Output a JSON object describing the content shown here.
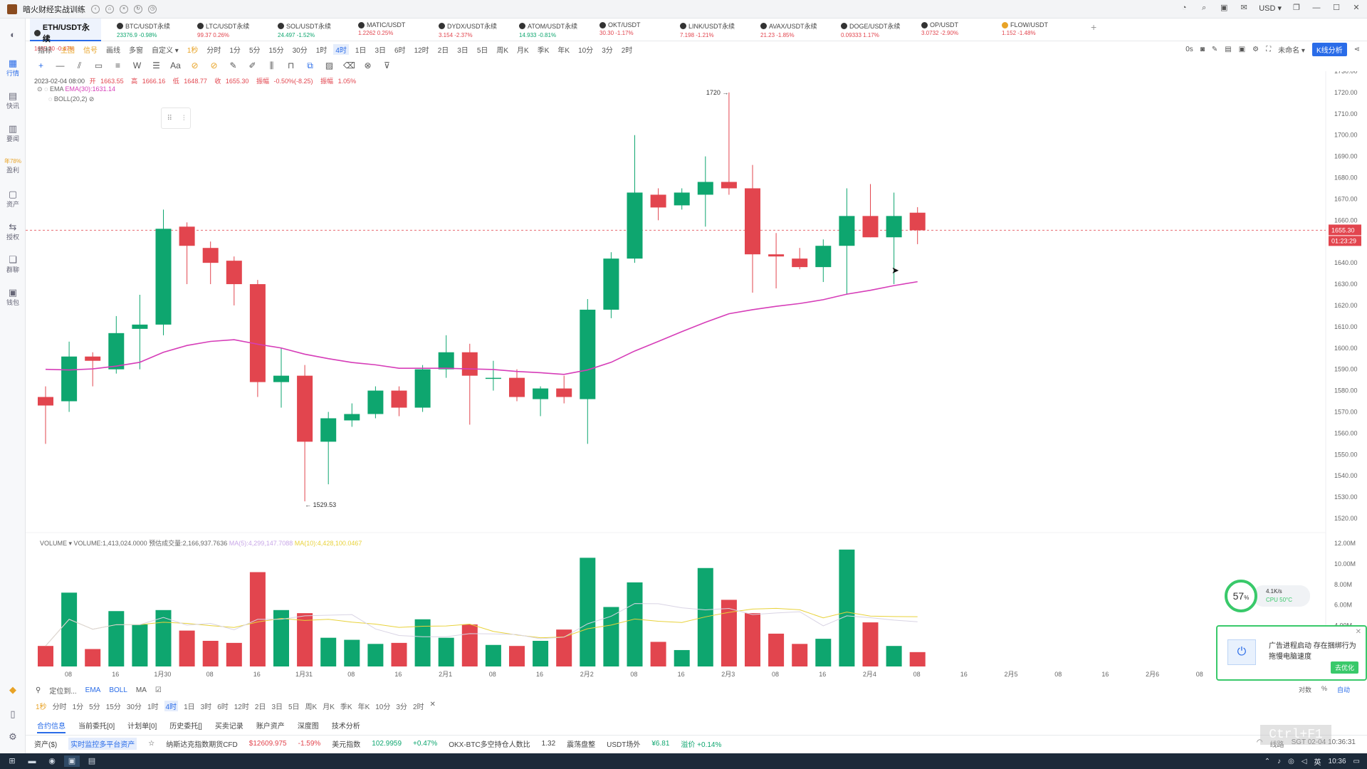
{
  "window": {
    "title": "暗火财经实战训练"
  },
  "titlebar_right": {
    "currency": "USD ▾"
  },
  "leftbar": {
    "items": [
      {
        "label": "",
        "icon": "globe-icon"
      },
      {
        "label": "行情",
        "icon": "market-icon"
      },
      {
        "label": "快讯",
        "icon": "news-icon"
      },
      {
        "label": "要闻",
        "icon": "headline-icon"
      },
      {
        "label": "盈利",
        "icon": "profit-icon",
        "badge": "年78%"
      },
      {
        "label": "资产",
        "icon": "asset-icon"
      },
      {
        "label": "授权",
        "icon": "auth-icon"
      },
      {
        "label": "群聊",
        "icon": "chat-icon"
      },
      {
        "label": "钱包",
        "icon": "wallet-icon"
      }
    ]
  },
  "tabs": [
    {
      "name": "ETH/USDT永续",
      "price": "1655.30",
      "change": "-0.47%",
      "dir": "down",
      "active": true
    },
    {
      "name": "BTC/USDT永续",
      "price": "23376.9",
      "change": "-0.98%",
      "dir": "up"
    },
    {
      "name": "LTC/USDT永续",
      "price": "99.37",
      "change": "0.26%",
      "dir": "down"
    },
    {
      "name": "SOL/USDT永续",
      "price": "24.497",
      "change": "-1.52%",
      "dir": "up"
    },
    {
      "name": "MATIC/USDT",
      "price": "1.2262",
      "change": "0.25%",
      "dir": "down"
    },
    {
      "name": "DYDX/USDT永续",
      "price": "3.154",
      "change": "-2.37%",
      "dir": "down"
    },
    {
      "name": "ATOM/USDT永续",
      "price": "14.933",
      "change": "-0.81%",
      "dir": "up"
    },
    {
      "name": "OKT/USDT",
      "price": "30.30",
      "change": "-1.17%",
      "dir": "down"
    },
    {
      "name": "LINK/USDT永续",
      "price": "7.198",
      "change": "-1.21%",
      "dir": "down"
    },
    {
      "name": "AVAX/USDT永续",
      "price": "21.23",
      "change": "-1.85%",
      "dir": "down"
    },
    {
      "name": "DOGE/USDT永续",
      "price": "0.09333",
      "change": "1.17%",
      "dir": "down"
    },
    {
      "name": "OP/USDT",
      "price": "3.0732",
      "change": "-2.90%",
      "dir": "down"
    },
    {
      "name": "FLOW/USDT",
      "price": "1.152",
      "change": "-1.48%",
      "dir": "down"
    }
  ],
  "add_tab": "+",
  "toolbar1": {
    "items": [
      "指标",
      "主图",
      "信号",
      "画线",
      "多窗",
      "自定义 ▾",
      "1秒",
      "分时",
      "1分",
      "5分",
      "15分",
      "30分",
      "1时",
      "4时",
      "1日",
      "3日",
      "6时",
      "12时",
      "2日",
      "3日",
      "5日",
      "周K",
      "月K",
      "季K",
      "年K",
      "10分",
      "3分",
      "2时"
    ],
    "selected": "4时"
  },
  "top_right": {
    "interval": "0s",
    "layout": "未命名 ▾",
    "kline_btn": "K线分析"
  },
  "ohlc": {
    "date": "2023-02-04 08:00",
    "open_label": "开",
    "open": "1663.55",
    "high_label": "高",
    "high": "1666.16",
    "low_label": "低",
    "low": "1648.77",
    "close_label": "收",
    "close": "1655.30",
    "amp_label": "振幅",
    "amp": "-0.50%(-8.25)",
    "range_label": "振幅",
    "range": "1.05%"
  },
  "indicators": {
    "ema_name": "EMA",
    "ema_value": "EMA(30):1631.14",
    "boll": "BOLL(20,2)"
  },
  "volume_info": {
    "label": "VOLUME ▾",
    "volume": "VOLUME:1,413,024.0000",
    "est": "预估成交量:2,166,937.7636",
    "ma5": "MA(5):4,299,147.7088",
    "ma10": "MA(10):4,428,100.0467"
  },
  "chart_data": {
    "type": "candlestick",
    "price_axis": {
      "min": 1520,
      "max": 1730,
      "step": 10
    },
    "volume_axis": {
      "labels": [
        "12.00M",
        "10.00M",
        "8.00M",
        "6.00M",
        "4.00M"
      ],
      "max": 12.5
    },
    "current_price": "1655.30",
    "countdown": "01:23:29",
    "annotations": {
      "high": "1720 →",
      "low": "← 1529.53"
    },
    "time_labels": [
      "08",
      "16",
      "1月30",
      "08",
      "16",
      "1月31",
      "08",
      "16",
      "2月1",
      "08",
      "16",
      "2月2",
      "08",
      "16",
      "2月3",
      "08",
      "16",
      "2月4",
      "08",
      "16",
      "2月5",
      "08",
      "16",
      "2月6",
      "08"
    ],
    "candles": [
      {
        "o": 1577,
        "h": 1582,
        "l": 1555,
        "c": 1573,
        "v": 2.0
      },
      {
        "o": 1575,
        "h": 1603,
        "l": 1570,
        "c": 1596,
        "v": 7.2
      },
      {
        "o": 1596,
        "h": 1598,
        "l": 1582,
        "c": 1594,
        "v": 1.7
      },
      {
        "o": 1590,
        "h": 1615,
        "l": 1588,
        "c": 1607,
        "v": 5.4
      },
      {
        "o": 1609,
        "h": 1625,
        "l": 1590,
        "c": 1611,
        "v": 4.1
      },
      {
        "o": 1611,
        "h": 1665,
        "l": 1606,
        "c": 1656,
        "v": 5.5
      },
      {
        "o": 1657,
        "h": 1659,
        "l": 1630,
        "c": 1648,
        "v": 3.5
      },
      {
        "o": 1647,
        "h": 1650,
        "l": 1630,
        "c": 1640,
        "v": 2.5
      },
      {
        "o": 1641,
        "h": 1643,
        "l": 1620,
        "c": 1630,
        "v": 2.3
      },
      {
        "o": 1630,
        "h": 1632,
        "l": 1577,
        "c": 1584,
        "v": 9.2
      },
      {
        "o": 1584,
        "h": 1600,
        "l": 1572,
        "c": 1587,
        "v": 5.5
      },
      {
        "o": 1587,
        "h": 1592,
        "l": 1528,
        "c": 1556,
        "v": 5.2
      },
      {
        "o": 1556,
        "h": 1570,
        "l": 1536,
        "c": 1567,
        "v": 2.8
      },
      {
        "o": 1566,
        "h": 1574,
        "l": 1563,
        "c": 1569,
        "v": 2.6
      },
      {
        "o": 1569,
        "h": 1582,
        "l": 1567,
        "c": 1580,
        "v": 2.2
      },
      {
        "o": 1580,
        "h": 1582,
        "l": 1568,
        "c": 1572,
        "v": 2.3
      },
      {
        "o": 1572,
        "h": 1592,
        "l": 1570,
        "c": 1590,
        "v": 4.6
      },
      {
        "o": 1590,
        "h": 1606,
        "l": 1586,
        "c": 1598,
        "v": 2.8
      },
      {
        "o": 1598,
        "h": 1602,
        "l": 1564,
        "c": 1587,
        "v": 4.1
      },
      {
        "o": 1586,
        "h": 1594,
        "l": 1580,
        "c": 1586,
        "v": 2.1
      },
      {
        "o": 1586,
        "h": 1590,
        "l": 1575,
        "c": 1577,
        "v": 2.0
      },
      {
        "o": 1576,
        "h": 1582,
        "l": 1568,
        "c": 1581,
        "v": 2.5
      },
      {
        "o": 1581,
        "h": 1587,
        "l": 1574,
        "c": 1577,
        "v": 3.6
      },
      {
        "o": 1576,
        "h": 1623,
        "l": 1555,
        "c": 1618,
        "v": 10.6
      },
      {
        "o": 1618,
        "h": 1645,
        "l": 1614,
        "c": 1642,
        "v": 5.8
      },
      {
        "o": 1642,
        "h": 1700,
        "l": 1640,
        "c": 1673,
        "v": 8.2
      },
      {
        "o": 1672,
        "h": 1675,
        "l": 1660,
        "c": 1666,
        "v": 2.4
      },
      {
        "o": 1667,
        "h": 1675,
        "l": 1665,
        "c": 1673,
        "v": 1.6
      },
      {
        "o": 1672,
        "h": 1690,
        "l": 1657,
        "c": 1678,
        "v": 9.6
      },
      {
        "o": 1678,
        "h": 1720,
        "l": 1672,
        "c": 1675,
        "v": 6.5
      },
      {
        "o": 1675,
        "h": 1686,
        "l": 1626,
        "c": 1644,
        "v": 5.2
      },
      {
        "o": 1644,
        "h": 1654,
        "l": 1628,
        "c": 1643,
        "v": 3.2
      },
      {
        "o": 1642,
        "h": 1647,
        "l": 1637,
        "c": 1638,
        "v": 2.2
      },
      {
        "o": 1638,
        "h": 1651,
        "l": 1631,
        "c": 1648,
        "v": 2.7
      },
      {
        "o": 1648,
        "h": 1675,
        "l": 1625,
        "c": 1662,
        "v": 11.4
      },
      {
        "o": 1662,
        "h": 1677,
        "l": 1652,
        "c": 1652,
        "v": 4.3
      },
      {
        "o": 1652,
        "h": 1673,
        "l": 1630,
        "c": 1662,
        "v": 2.0
      },
      {
        "o": 1663.55,
        "h": 1666.16,
        "l": 1648.77,
        "c": 1655.3,
        "v": 1.4
      }
    ],
    "ema30": [
      1590,
      1589.7,
      1590.2,
      1591.5,
      1593.3,
      1598.0,
      1601.2,
      1603.1,
      1603.9,
      1601.8,
      1600.0,
      1597.1,
      1595.0,
      1593.2,
      1592.1,
      1590.5,
      1590.5,
      1590.5,
      1590.2,
      1589.9,
      1589.0,
      1588.4,
      1587.6,
      1589.7,
      1593.3,
      1598.6,
      1603.1,
      1607.7,
      1612.1,
      1616.1,
      1618.0,
      1619.6,
      1620.9,
      1622.7,
      1625.3,
      1627.1,
      1629.3,
      1631.14
    ]
  },
  "bottom_toolbar": {
    "locate": "定位到...",
    "ema": "EMA",
    "boll": "BOLL",
    "ma": "MA"
  },
  "bottom_intervals": {
    "items": [
      "1秒",
      "分时",
      "1分",
      "5分",
      "15分",
      "30分",
      "1时",
      "4时",
      "1日",
      "3时",
      "6时",
      "12时",
      "2日",
      "3日",
      "5日",
      "周K",
      "月K",
      "季K",
      "年K",
      "10分",
      "3分",
      "2时",
      "✕"
    ],
    "selected": "4时"
  },
  "right_mini": {
    "log": "对数",
    "pct": "%",
    "auto": "自动"
  },
  "bottom_tabs": [
    "合约信息",
    "当前委托[0]",
    "计划单[0]",
    "历史委托[]",
    "买卖记录",
    "账户资产",
    "深度图",
    "技术分析"
  ],
  "statusbar": {
    "asset_label": "资产($)",
    "asset_link": "实时监控多平台资产",
    "nasdaq_label": "纳斯达克指数期货CFD",
    "nasdaq_value": "$12609.975",
    "nasdaq_change": "-1.59%",
    "dxy_label": "美元指数",
    "dxy_value": "102.9959",
    "dxy_change": "+0.47%",
    "ratio_label": "OKX-BTC多空持仓人数比",
    "ratio_value": "1.32",
    "ratio_state": "震荡盘整",
    "usdt_label": "USDT场外",
    "usdt_value": "¥6.81",
    "usdt_premium": "溢价 +0.14%",
    "network": "线路",
    "datetime": "SGT 02-04 10:36:31"
  },
  "perf": {
    "percent": "57",
    "unit": "%",
    "speed": "4.1K/s",
    "cpu": "CPU 50°C"
  },
  "popup": {
    "text": "广告进程启动 存在捆绑行为 拖慢电脑速度",
    "button": "去优化"
  },
  "watermark": "Ctrl+F1",
  "taskbar": {
    "ime": "英",
    "time": "10:36"
  },
  "colors": {
    "up": "#0ea66f",
    "down": "#e2454e",
    "ema": "#d63db8",
    "ma10": "#e8d23a",
    "accent": "#2a6ce8"
  }
}
